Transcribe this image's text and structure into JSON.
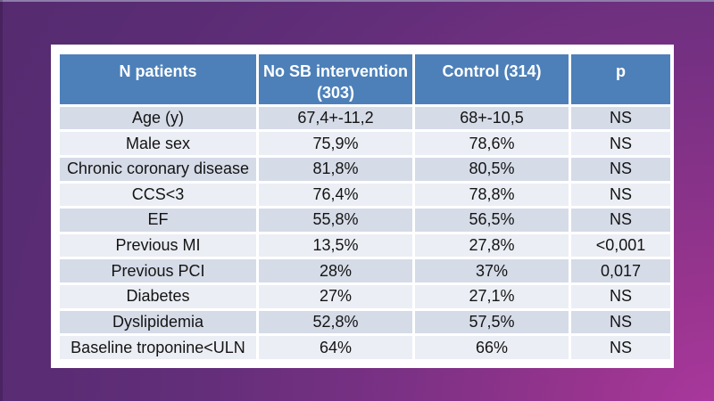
{
  "slide": {
    "colors": {
      "background_dark_purple": "#552b6f",
      "background_magenta": "#ab389e",
      "panel_white": "#ffffff",
      "header_blue": "#4d80b9",
      "row_band_dark": "#d5dbe7",
      "row_band_light": "#ebeef4",
      "header_text": "#ffffff",
      "body_text": "#141414"
    }
  },
  "table": {
    "headers": [
      "N patients",
      "No SB intervention (303)",
      "Control (314)",
      "p"
    ],
    "rows": [
      {
        "label": "Age (y)",
        "no_sb_intervention": "67,4+-11,2",
        "control": "68+-10,5",
        "p": "NS"
      },
      {
        "label": "Male sex",
        "no_sb_intervention": "75,9%",
        "control": "78,6%",
        "p": "NS"
      },
      {
        "label": "Chronic coronary disease",
        "no_sb_intervention": "81,8%",
        "control": "80,5%",
        "p": "NS"
      },
      {
        "label": "CCS<3",
        "no_sb_intervention": "76,4%",
        "control": "78,8%",
        "p": "NS"
      },
      {
        "label": "EF",
        "no_sb_intervention": "55,8%",
        "control": "56,5%",
        "p": "NS"
      },
      {
        "label": "Previous MI",
        "no_sb_intervention": "13,5%",
        "control": "27,8%",
        "p": "<0,001"
      },
      {
        "label": "Previous PCI",
        "no_sb_intervention": "28%",
        "control": "37%",
        "p": "0,017"
      },
      {
        "label": "Diabetes",
        "no_sb_intervention": "27%",
        "control": "27,1%",
        "p": "NS"
      },
      {
        "label": "Dyslipidemia",
        "no_sb_intervention": "52,8%",
        "control": "57,5%",
        "p": "NS"
      },
      {
        "label": "Baseline troponine<ULN",
        "no_sb_intervention": "64%",
        "control": "66%",
        "p": "NS"
      }
    ]
  },
  "chart_data": {
    "type": "table",
    "title": "",
    "columns": [
      "N patients",
      "No SB intervention (303)",
      "Control (314)",
      "p"
    ],
    "rows": [
      [
        "Age (y)",
        "67,4+-11,2",
        "68+-10,5",
        "NS"
      ],
      [
        "Male sex",
        "75,9%",
        "78,6%",
        "NS"
      ],
      [
        "Chronic coronary disease",
        "81,8%",
        "80,5%",
        "NS"
      ],
      [
        "CCS<3",
        "76,4%",
        "78,8%",
        "NS"
      ],
      [
        "EF",
        "55,8%",
        "56,5%",
        "NS"
      ],
      [
        "Previous MI",
        "13,5%",
        "27,8%",
        "<0,001"
      ],
      [
        "Previous PCI",
        "28%",
        "37%",
        "0,017"
      ],
      [
        "Diabetes",
        "27%",
        "27,1%",
        "NS"
      ],
      [
        "Dyslipidemia",
        "52,8%",
        "57,5%",
        "NS"
      ],
      [
        "Baseline troponine<ULN",
        "64%",
        "66%",
        "NS"
      ]
    ]
  }
}
